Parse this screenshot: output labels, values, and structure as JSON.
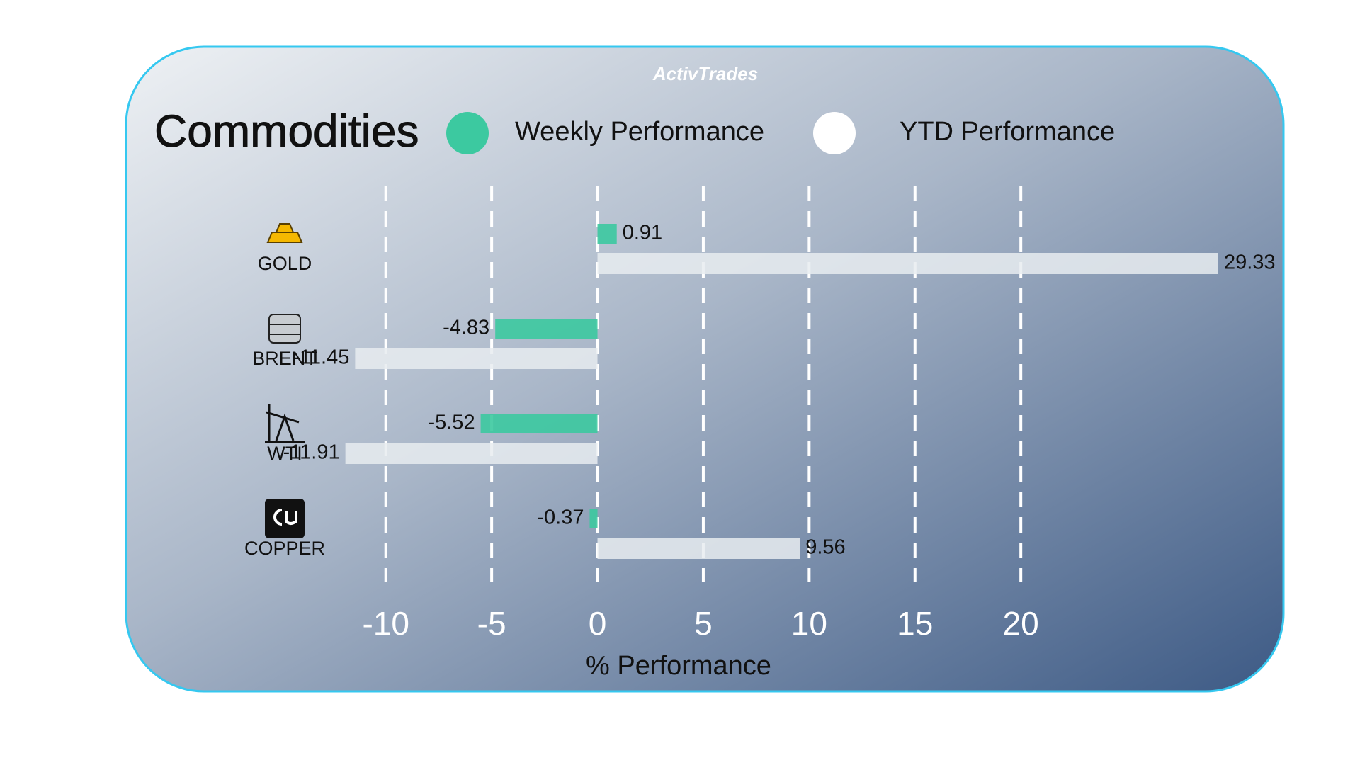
{
  "brand": "ActivTrades",
  "chart_data": {
    "type": "bar",
    "orientation": "horizontal",
    "title": "Commodities",
    "xlabel": "% Performance",
    "categories": [
      "GOLD",
      "BRENT",
      "WTI",
      "COPPER"
    ],
    "series": [
      {
        "name": "Weekly Performance",
        "color": "#3cc9a0",
        "values": [
          0.91,
          -4.83,
          -5.52,
          -0.37
        ]
      },
      {
        "name": "YTD Performance",
        "color": "#e8ecf0",
        "values": [
          29.33,
          -11.45,
          -11.91,
          9.56
        ]
      }
    ],
    "xlim": [
      -12.5,
      30
    ],
    "xticks": [
      -10,
      -5,
      0,
      5,
      10,
      15,
      20
    ],
    "grid": true
  }
}
